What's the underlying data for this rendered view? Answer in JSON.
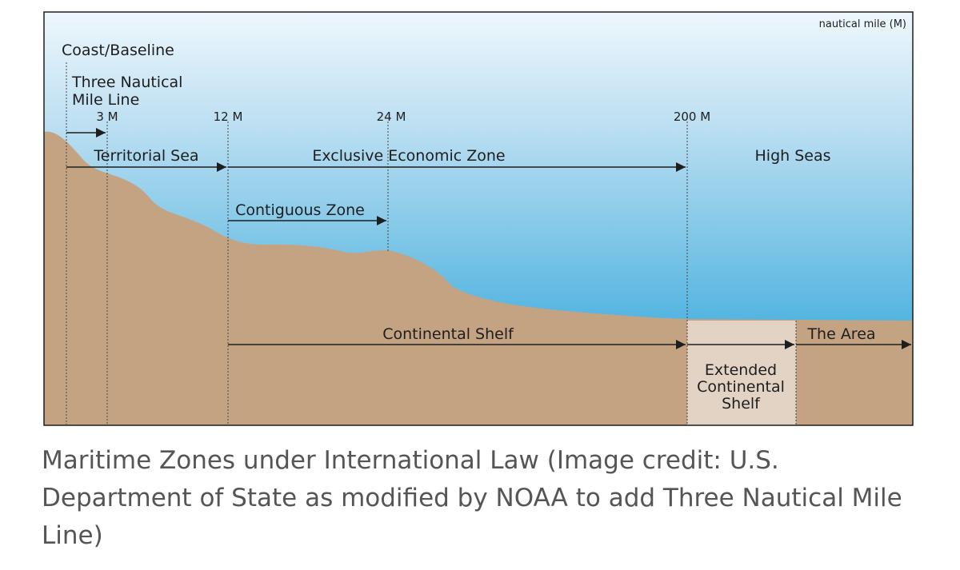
{
  "diagram": {
    "unit_label": "nautical mile (M)",
    "coast_label": "Coast/Baseline",
    "three_mile_label": [
      "Three Nautical",
      "Mile Line"
    ],
    "distance_ticks": [
      "3 M",
      "12 M",
      "24 M",
      "200 M"
    ],
    "zones": {
      "territorial_sea": "Territorial Sea",
      "eez": "Exclusive Economic Zone",
      "high_seas": "High Seas",
      "contiguous_zone": "Contiguous Zone",
      "continental_shelf": "Continental Shelf",
      "the_area": "The Area",
      "extended_shelf": [
        "Extended",
        "Continental",
        "Shelf"
      ]
    },
    "colors": {
      "sky_top": "#eef7fc",
      "sky_bottom": "#b6dcf1",
      "sea_top": "#b9def1",
      "sea_bottom": "#1d9ed8",
      "seabed": "#c4a382",
      "extended_shelf": "#e2d3c4",
      "line": "#1e1e1e"
    }
  },
  "caption": "Maritime Zones under International Law (Image credit: U.S. Department of State as modified by NOAA to add Three Nautical Mile Line)"
}
